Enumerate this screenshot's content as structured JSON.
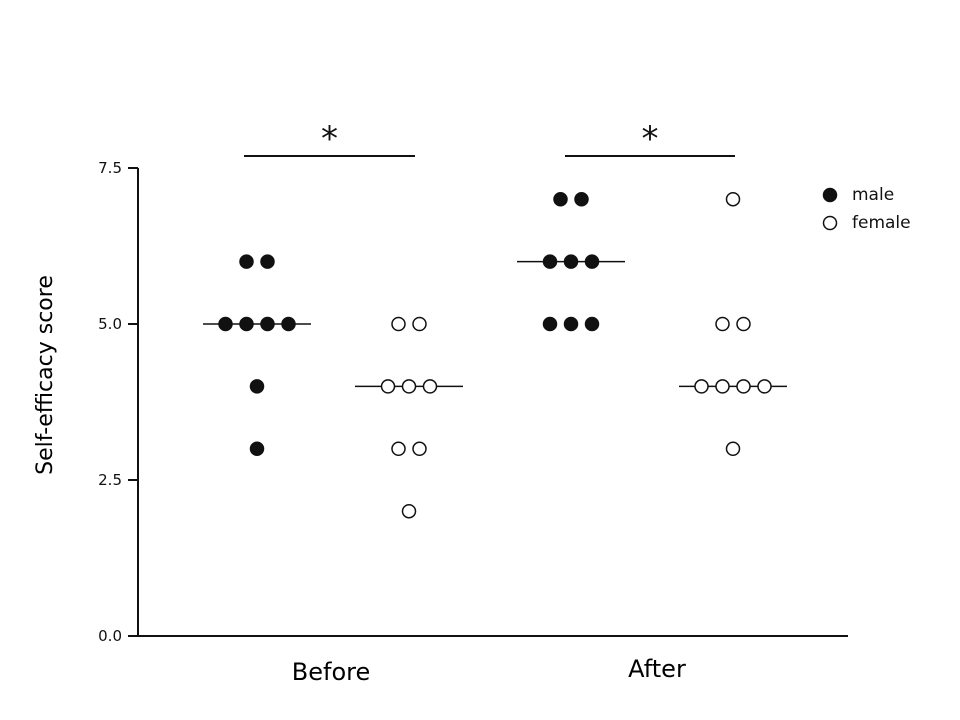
{
  "chart_data": {
    "type": "scatter",
    "title": "",
    "xlabel": "",
    "ylabel": "Self-efficacy score",
    "ylim": [
      0,
      7.5
    ],
    "yticks": [
      "0.0",
      "2.5",
      "5.0",
      "7.5"
    ],
    "grid": false,
    "legend_position": "top-right",
    "categories": [
      "Before",
      "After"
    ],
    "series": [
      {
        "name": "male",
        "marker": "filled",
        "color": "#111111",
        "groups": [
          {
            "category": "Before",
            "values": [
              6,
              6,
              5,
              5,
              5,
              5,
              4,
              3
            ],
            "median": 5
          },
          {
            "category": "After",
            "values": [
              7,
              7,
              6,
              6,
              6,
              5,
              5,
              5
            ],
            "median": 6
          }
        ]
      },
      {
        "name": "female",
        "marker": "open",
        "color": "#111111",
        "groups": [
          {
            "category": "Before",
            "values": [
              5,
              5,
              4,
              4,
              4,
              3,
              3,
              2
            ],
            "median": 4
          },
          {
            "category": "After",
            "values": [
              7,
              5,
              5,
              4,
              4,
              4,
              4,
              3
            ],
            "median": 4
          }
        ]
      }
    ],
    "annotations": [
      {
        "category": "Before",
        "text": "*"
      },
      {
        "category": "After",
        "text": "*"
      }
    ]
  }
}
